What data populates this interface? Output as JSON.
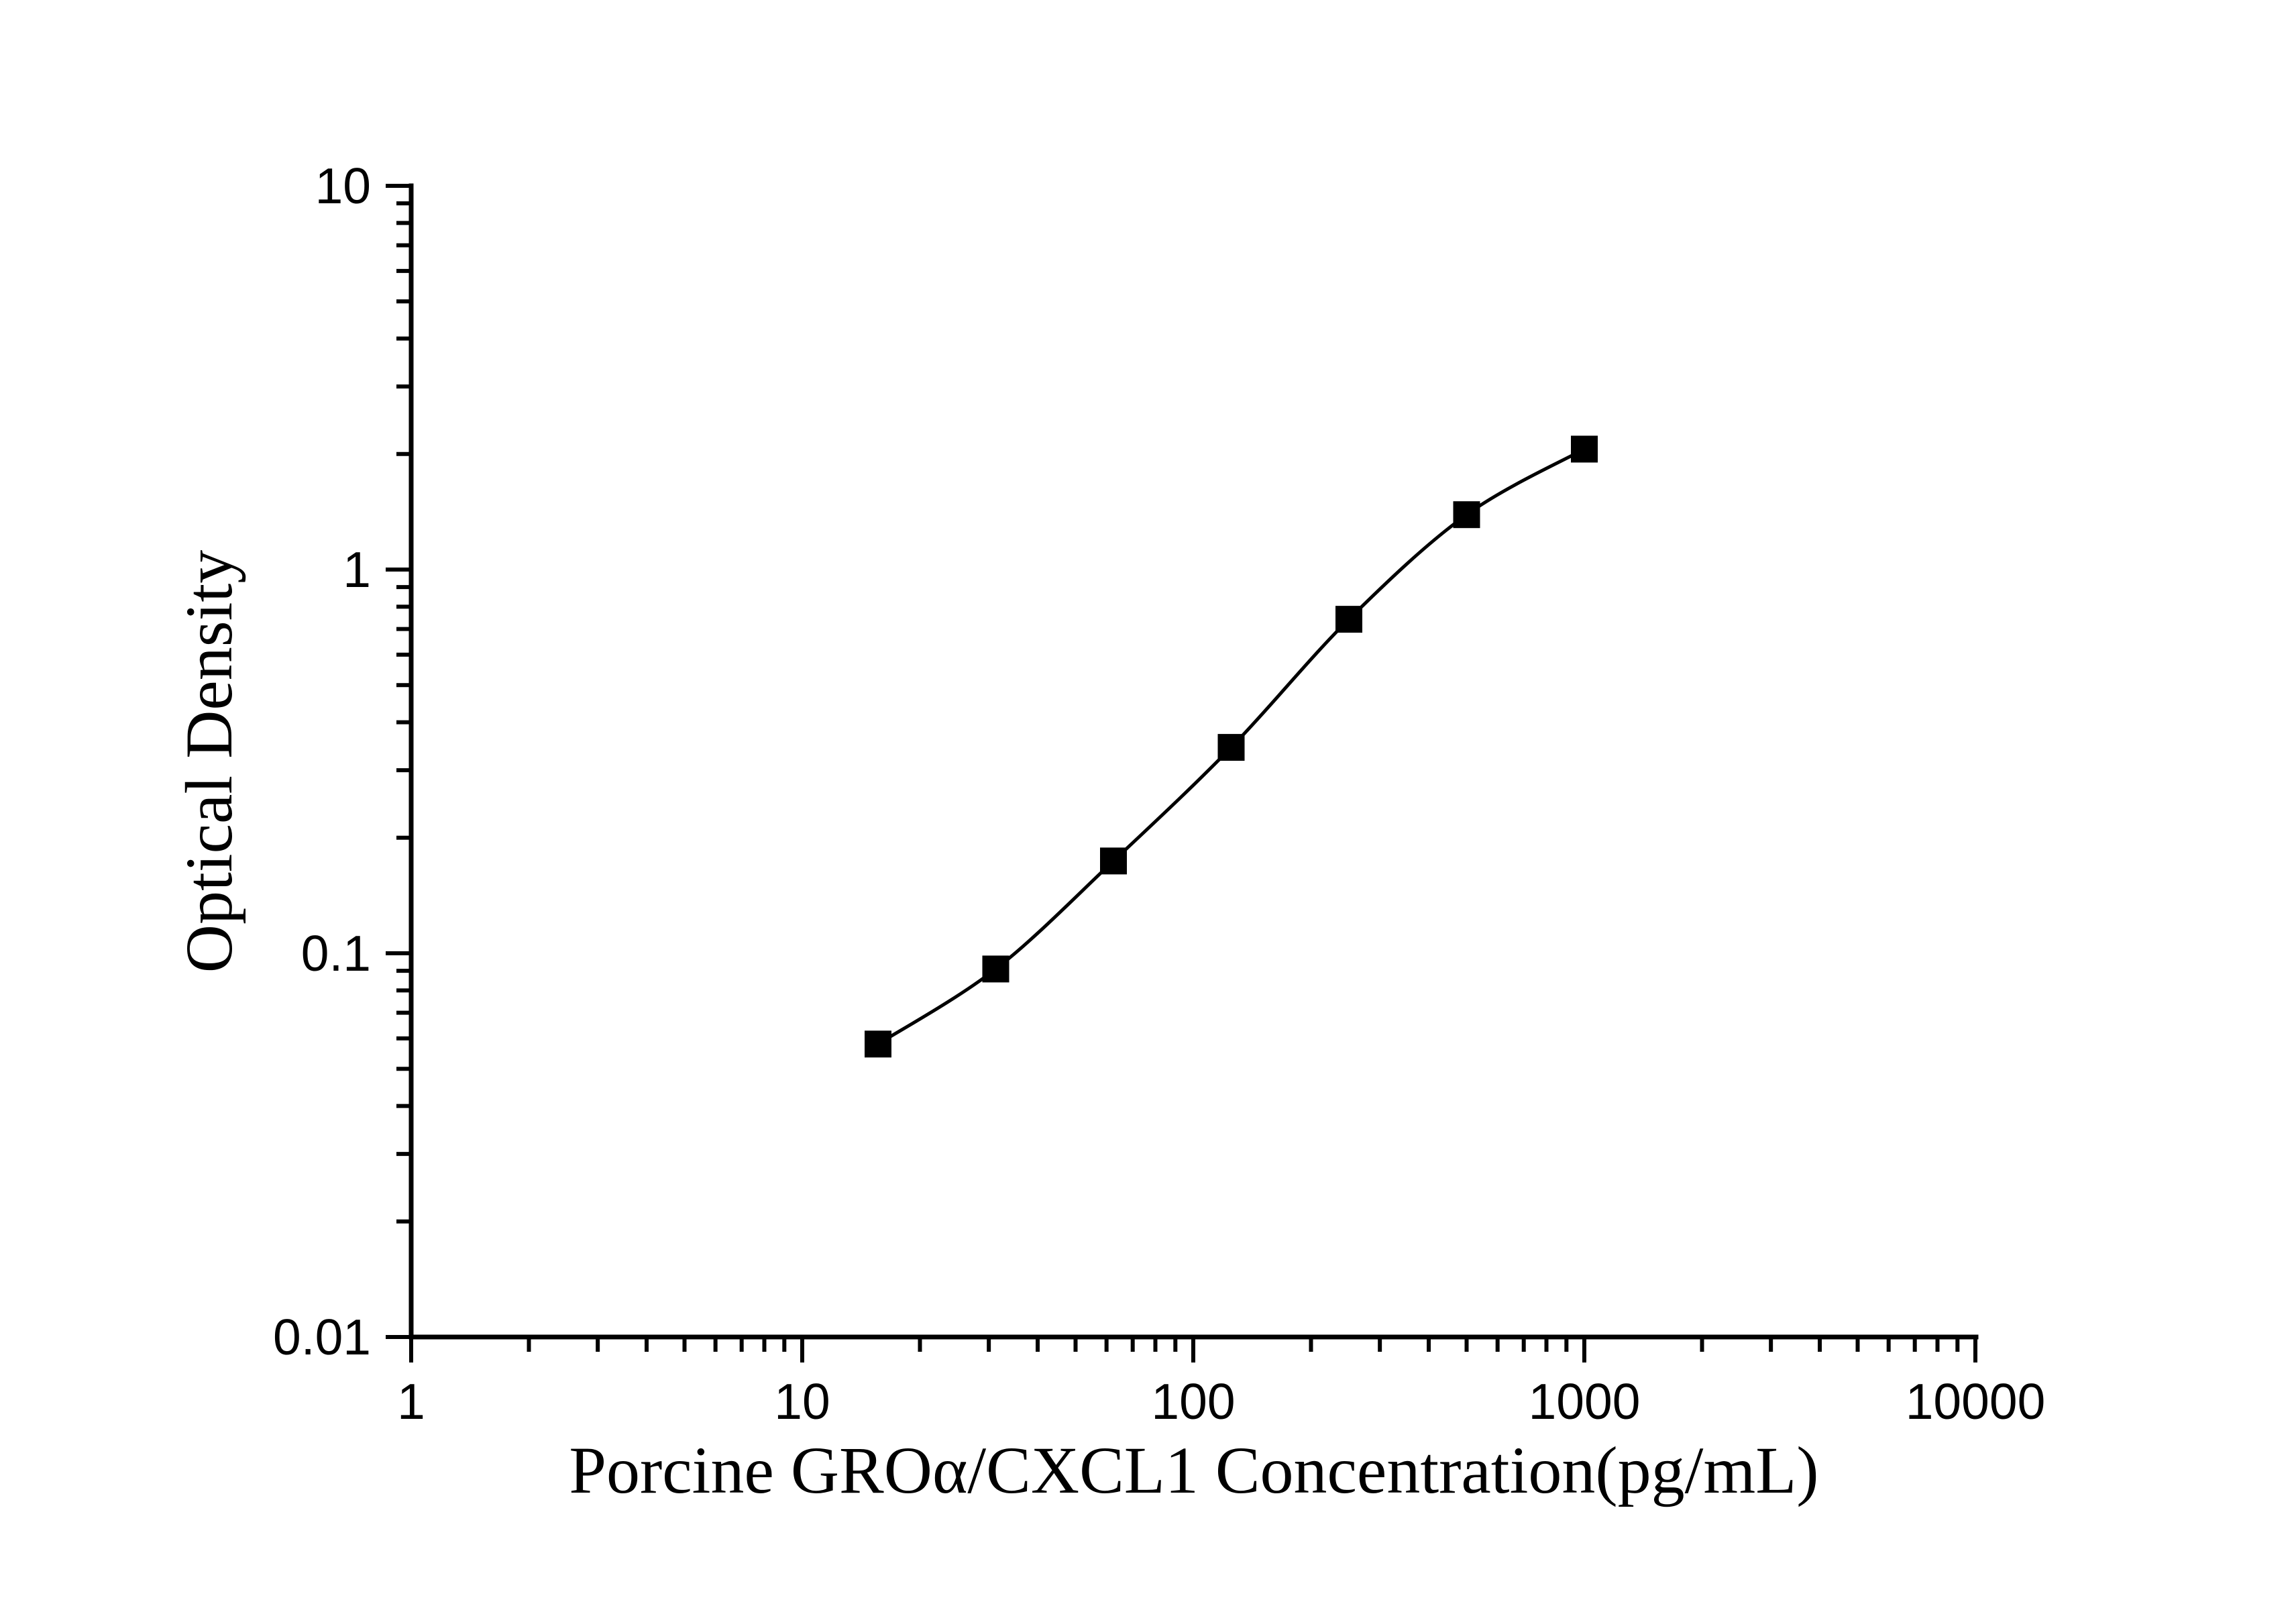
{
  "figure": {
    "background_color": "#ffffff",
    "ink_color": "#000000"
  },
  "chart_data": {
    "type": "scatter",
    "subtype": "line-with-square-markers",
    "title": "",
    "xlabel": "Porcine GROα/CXCL1 Concentration(pg/mL)",
    "ylabel": "Optical Density",
    "x_scale": "log10",
    "y_scale": "log10",
    "xlim": [
      1,
      10000
    ],
    "ylim": [
      0.01,
      10
    ],
    "grid": "off",
    "legend": "none",
    "x_major_ticks": [
      {
        "value": 1,
        "label": "1"
      },
      {
        "value": 10,
        "label": "10"
      },
      {
        "value": 100,
        "label": "100"
      },
      {
        "value": 1000,
        "label": "1000"
      },
      {
        "value": 10000,
        "label": "10000"
      }
    ],
    "y_major_ticks": [
      {
        "value": 10,
        "label": "10"
      },
      {
        "value": 1,
        "label": "1"
      },
      {
        "value": 0.1,
        "label": "0.1"
      },
      {
        "value": 0.01,
        "label": "0.01"
      }
    ],
    "minor_ticks": "log-subdecades (2-9) on both axes, outward",
    "series": [
      {
        "name": "standard-curve",
        "marker": "filled-black-square",
        "line": "smooth-black",
        "points": [
          {
            "x": 15.625,
            "y": 0.058
          },
          {
            "x": 31.25,
            "y": 0.091
          },
          {
            "x": 62.5,
            "y": 0.174
          },
          {
            "x": 125,
            "y": 0.344
          },
          {
            "x": 250,
            "y": 0.742
          },
          {
            "x": 500,
            "y": 1.39
          },
          {
            "x": 1000,
            "y": 2.06
          }
        ]
      }
    ]
  }
}
